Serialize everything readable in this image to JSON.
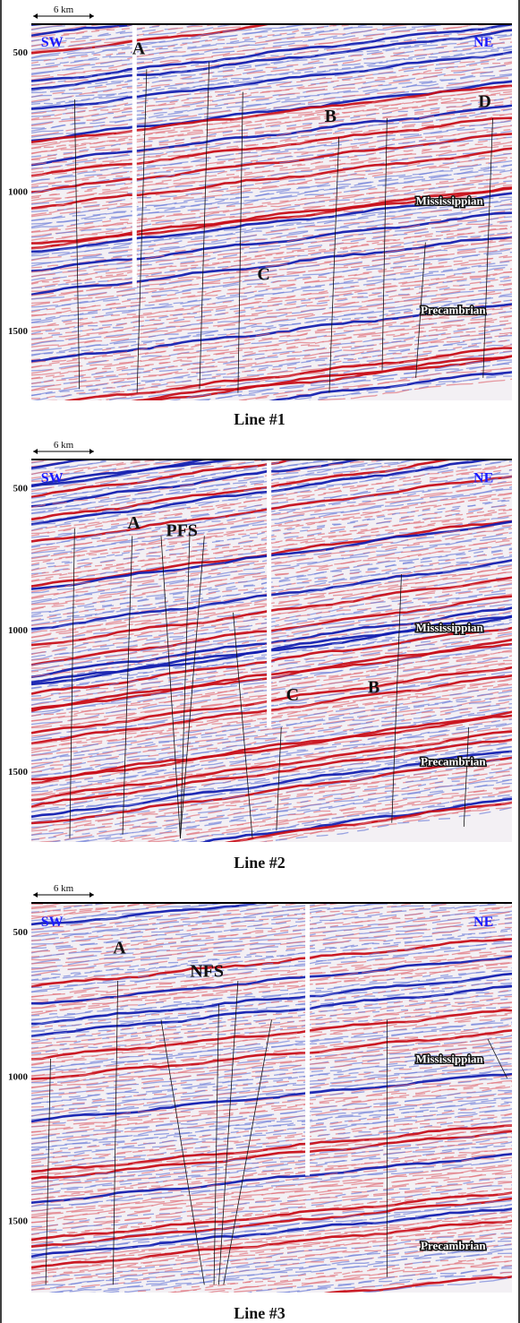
{
  "panels": [
    {
      "scale": "6 km",
      "yticks": [
        500,
        1000,
        1500
      ],
      "labels": [
        "SW",
        "NE",
        "A",
        "B",
        "C",
        "D",
        "Mississippian",
        "Precambrian"
      ],
      "caption": "Line #1"
    },
    {
      "scale": "6 km",
      "yticks": [
        500,
        1000,
        1500
      ],
      "labels": [
        "SW",
        "NE",
        "A",
        "PFS",
        "C",
        "B",
        "Mississippian",
        "Precambrian"
      ],
      "caption": "Line #2"
    },
    {
      "scale": "6 km",
      "yticks": [
        500,
        1000,
        1500
      ],
      "labels": [
        "SW",
        "NE",
        "A",
        "NFS",
        "Mississippian",
        "Precambrian"
      ],
      "caption": "Line #3"
    }
  ]
}
